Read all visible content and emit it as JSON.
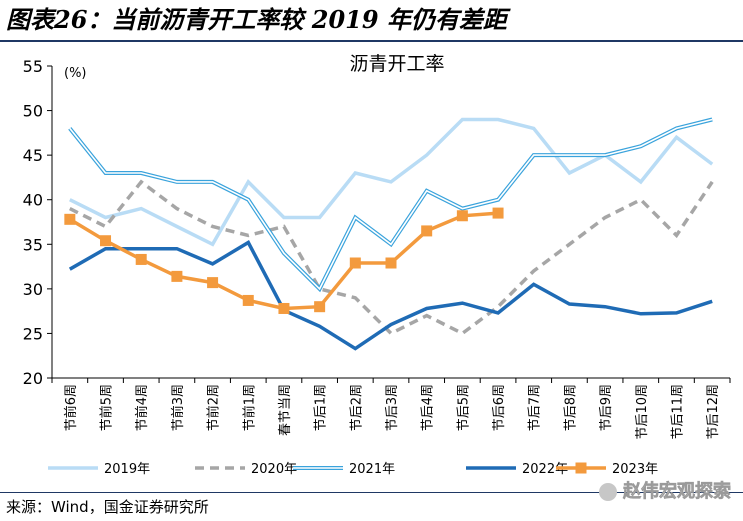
{
  "figure_title": "图表26：当前沥青开工率较 2019 年仍有差距",
  "source": "来源：Wind，国金证券研究所",
  "watermark": "赵伟宏观探索",
  "colors": {
    "2019年": "#b9dcf5",
    "2020年": "#a6a6a6",
    "2021年": "#3aa3dc",
    "2022年": "#1f6bb5",
    "2023年": "#f39a3d"
  },
  "chart_data": {
    "type": "line",
    "title": "沥青开工率",
    "unit_label": "(%)",
    "ylim": [
      20,
      55
    ],
    "yticks": [
      20,
      25,
      30,
      35,
      40,
      45,
      50,
      55
    ],
    "grid": false,
    "legend_position": "bottom",
    "categories": [
      "节前6周",
      "节前5周",
      "节前4周",
      "节前3周",
      "节前2周",
      "节前1周",
      "春节当周",
      "节后1周",
      "节后2周",
      "节后3周",
      "节后4周",
      "节后5周",
      "节后6周",
      "节后7周",
      "节后8周",
      "节后9周",
      "节后10周",
      "节后11周",
      "节后12周"
    ],
    "series": [
      {
        "name": "2019年",
        "style": "solid-light",
        "values": [
          40,
          38,
          39,
          37,
          35,
          42,
          38,
          38,
          43,
          42,
          45,
          49,
          49,
          48,
          43,
          45,
          42,
          47,
          44
        ]
      },
      {
        "name": "2020年",
        "style": "dashed",
        "values": [
          39,
          37,
          42,
          39,
          37,
          36,
          37,
          30,
          29,
          25,
          27,
          25,
          28,
          32,
          35,
          38,
          40,
          36,
          42
        ]
      },
      {
        "name": "2021年",
        "style": "double",
        "values": [
          48,
          43,
          43,
          42,
          42,
          40,
          34,
          30,
          38,
          35,
          41,
          39,
          40,
          45,
          45,
          45,
          46,
          48,
          49
        ]
      },
      {
        "name": "2022年",
        "style": "solid-thick",
        "values": [
          32.2,
          34.5,
          34.5,
          34.5,
          32.8,
          35.2,
          27.6,
          25.8,
          23.3,
          26,
          27.8,
          28.4,
          27.3,
          30.5,
          28.3,
          28,
          27.2,
          27.3,
          28.6
        ]
      },
      {
        "name": "2023年",
        "style": "square-markers",
        "values": [
          37.8,
          35.4,
          33.3,
          31.4,
          30.7,
          28.7,
          27.8,
          28,
          32.9,
          32.9,
          36.5,
          38.2,
          38.5,
          null,
          null,
          null,
          null,
          null,
          null
        ]
      }
    ]
  }
}
